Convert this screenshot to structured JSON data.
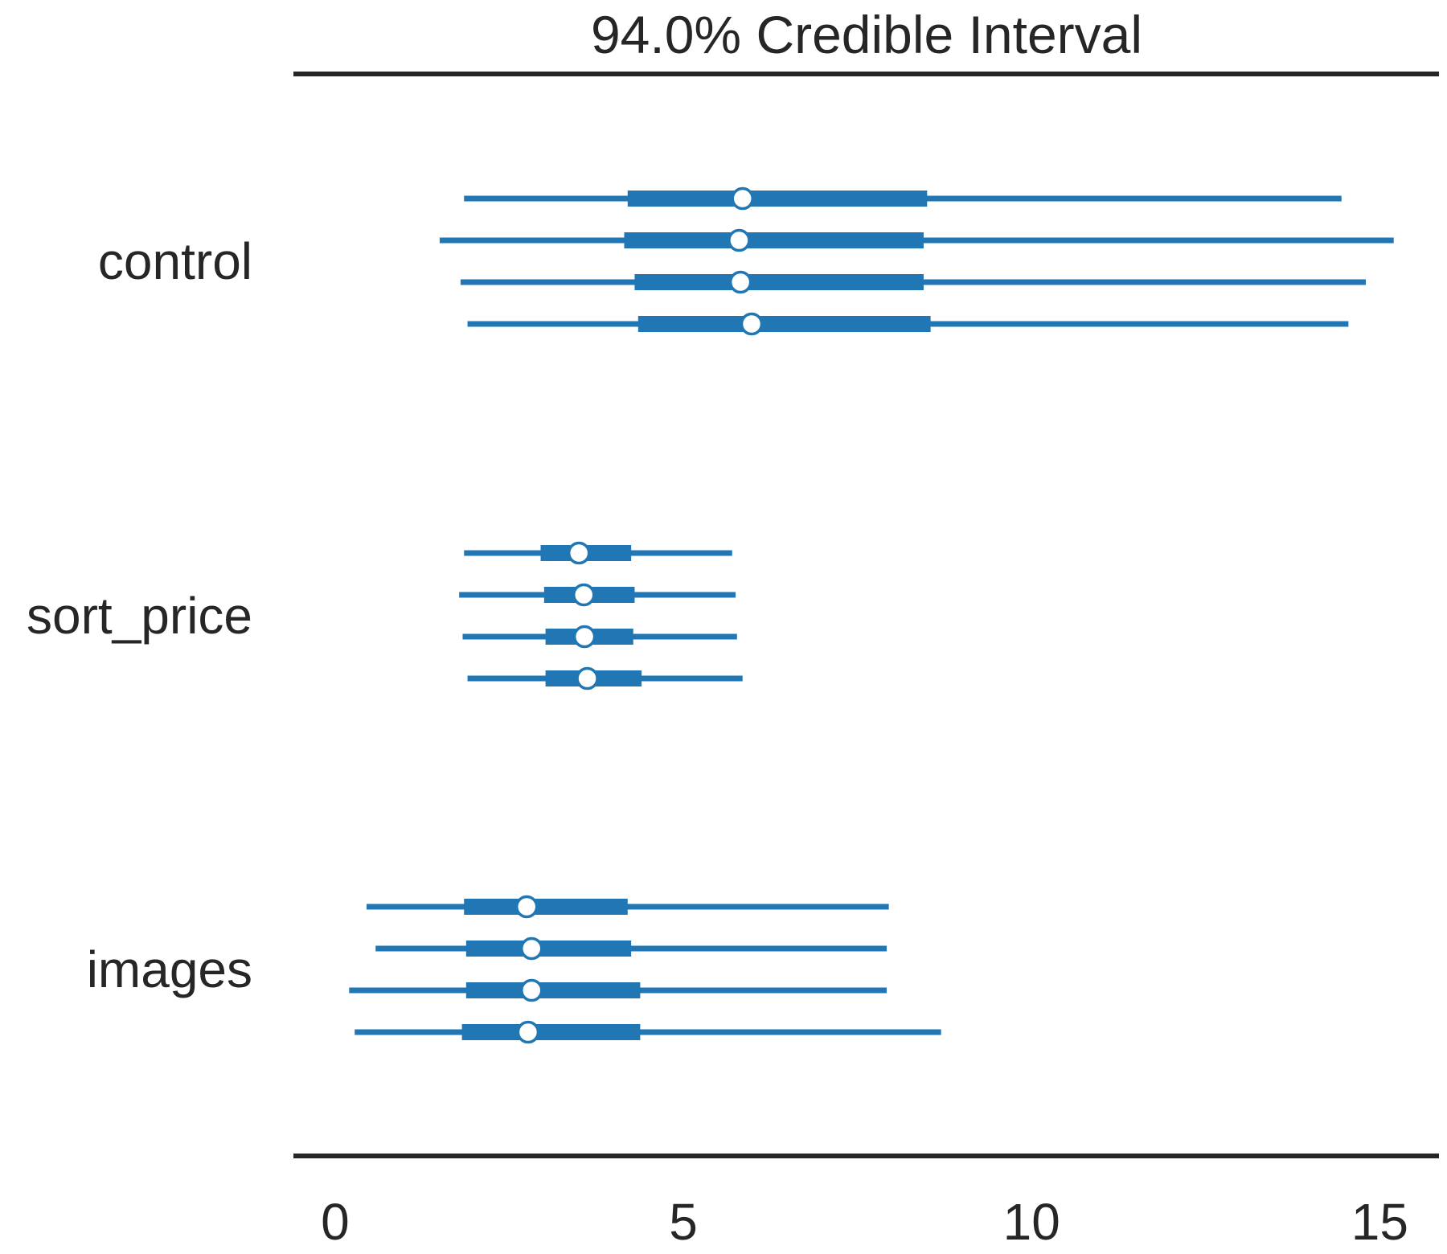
{
  "chart_data": {
    "type": "forest",
    "title": "94.0% Credible Interval",
    "xlim": [
      -0.6,
      15.85
    ],
    "xticks": [
      0,
      5,
      10,
      15
    ],
    "grid": false,
    "colors": {
      "interval": "#2077b4",
      "marker_fill": "#ffffff",
      "axis": "#262626",
      "text": "#262626"
    },
    "categories": [
      {
        "label": "control",
        "chains": [
          {
            "hdi94": [
              1.85,
              14.45
            ],
            "iqr": [
              4.2,
              8.5
            ],
            "median": 5.85
          },
          {
            "hdi94": [
              1.5,
              15.2
            ],
            "iqr": [
              4.15,
              8.45
            ],
            "median": 5.8
          },
          {
            "hdi94": [
              1.8,
              14.8
            ],
            "iqr": [
              4.3,
              8.45
            ],
            "median": 5.82
          },
          {
            "hdi94": [
              1.9,
              14.55
            ],
            "iqr": [
              4.35,
              8.55
            ],
            "median": 5.98
          }
        ]
      },
      {
        "label": "sort_price",
        "chains": [
          {
            "hdi94": [
              1.85,
              5.7
            ],
            "iqr": [
              2.95,
              4.25
            ],
            "median": 3.5
          },
          {
            "hdi94": [
              1.78,
              5.75
            ],
            "iqr": [
              3.0,
              4.3
            ],
            "median": 3.57
          },
          {
            "hdi94": [
              1.83,
              5.77
            ],
            "iqr": [
              3.02,
              4.28
            ],
            "median": 3.58
          },
          {
            "hdi94": [
              1.9,
              5.85
            ],
            "iqr": [
              3.02,
              4.4
            ],
            "median": 3.62
          }
        ]
      },
      {
        "label": "images",
        "chains": [
          {
            "hdi94": [
              0.45,
              7.95
            ],
            "iqr": [
              1.85,
              4.2
            ],
            "median": 2.75
          },
          {
            "hdi94": [
              0.58,
              7.92
            ],
            "iqr": [
              1.88,
              4.25
            ],
            "median": 2.82
          },
          {
            "hdi94": [
              0.2,
              7.92
            ],
            "iqr": [
              1.88,
              4.38
            ],
            "median": 2.82
          },
          {
            "hdi94": [
              0.28,
              8.7
            ],
            "iqr": [
              1.82,
              4.38
            ],
            "median": 2.77
          }
        ]
      }
    ]
  }
}
